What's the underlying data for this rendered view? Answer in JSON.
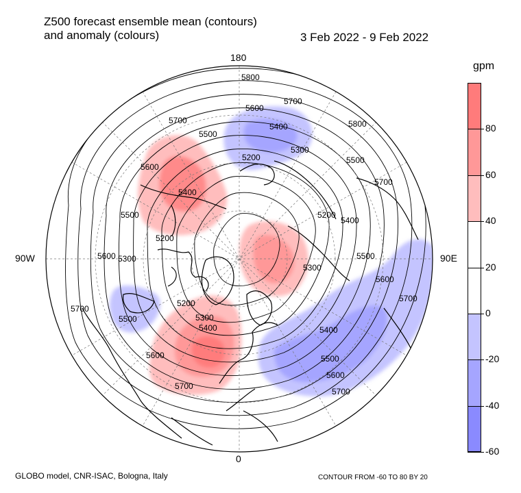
{
  "title": {
    "line1": "Z500 forecast ensemble mean (contours)",
    "line2": "and anomaly (colours)",
    "dates": "3 Feb 2022 - 9 Feb 2022"
  },
  "longitude_labels": {
    "top": "180",
    "bottom": "0",
    "left": "90W",
    "right": "90E"
  },
  "contour_labels": [
    "5800",
    "5700",
    "5600",
    "5500",
    "5400",
    "5300",
    "5200"
  ],
  "colorbar": {
    "unit": "gpm",
    "levels": [
      {
        "range": "60 to 100",
        "color": "#ff7b7b"
      },
      {
        "range": "40 to 60",
        "color": "#ff9898"
      },
      {
        "range": "20 to 40",
        "color": "#ffbdbd"
      },
      {
        "range": "0 to 20",
        "color": "#ffffff"
      },
      {
        "range": "-20 to 0",
        "color": "#ffffff"
      },
      {
        "range": "-40 to -20",
        "color": "#c4c4ff"
      },
      {
        "range": "-60 to -40",
        "color": "#a5a5ff"
      },
      {
        "range": "-100 to -60",
        "color": "#8a8aff"
      }
    ],
    "tick_labels": [
      "80",
      "60",
      "40",
      "20",
      "0",
      "-20",
      "-40",
      "-60"
    ]
  },
  "anomaly_colors": {
    "positive": "#ff6666",
    "negative": "#8080ff"
  },
  "footer": {
    "source": "GLOBO model, CNR-ISAC, Bologna, Italy",
    "contour_note": "CONTOUR FROM -60 TO 80 BY 20"
  }
}
